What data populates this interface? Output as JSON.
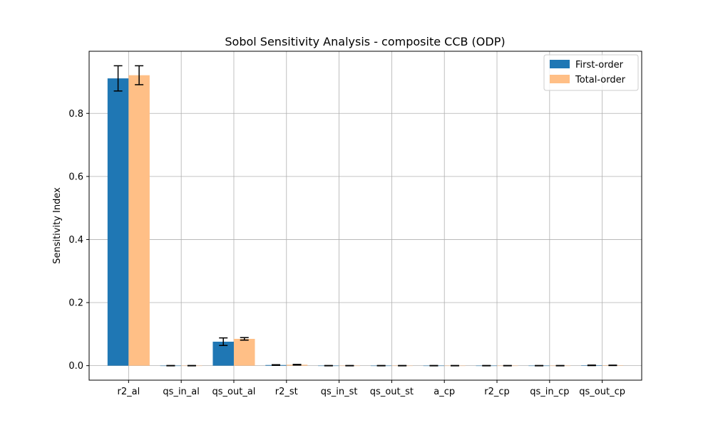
{
  "chart_data": {
    "type": "bar",
    "title": "Sobol Sensitivity Analysis - composite CCB (ODP)",
    "xlabel": "",
    "ylabel": "Sensitivity Index",
    "categories": [
      "r2_al",
      "qs_in_al",
      "qs_out_al",
      "r2_st",
      "qs_in_st",
      "qs_out_st",
      "a_cp",
      "r2_cp",
      "qs_in_cp",
      "qs_out_cp"
    ],
    "series": [
      {
        "name": "First-order",
        "color": "#1f77b4",
        "values": [
          0.911,
          0.0,
          0.076,
          0.002,
          0.0,
          0.0,
          0.0,
          0.0,
          0.0,
          0.001
        ],
        "errors": [
          0.04,
          0.0005,
          0.012,
          0.001,
          0.0005,
          0.0005,
          0.0005,
          0.0005,
          0.0005,
          0.0008
        ]
      },
      {
        "name": "Total-order",
        "color": "#ffbf86",
        "values": [
          0.921,
          0.0,
          0.085,
          0.003,
          0.0,
          0.0,
          0.0,
          0.0,
          0.0,
          0.001
        ],
        "errors": [
          0.03,
          0.0005,
          0.004,
          0.001,
          0.0005,
          0.0005,
          0.0005,
          0.0005,
          0.0005,
          0.0006
        ]
      }
    ],
    "yticks": [
      0.0,
      0.2,
      0.4,
      0.6,
      0.8
    ],
    "ytick_labels": [
      "0.0",
      "0.2",
      "0.4",
      "0.6",
      "0.8"
    ],
    "ylim": [
      -0.046,
      0.997
    ],
    "grid": true,
    "legend_position": "top-right"
  }
}
